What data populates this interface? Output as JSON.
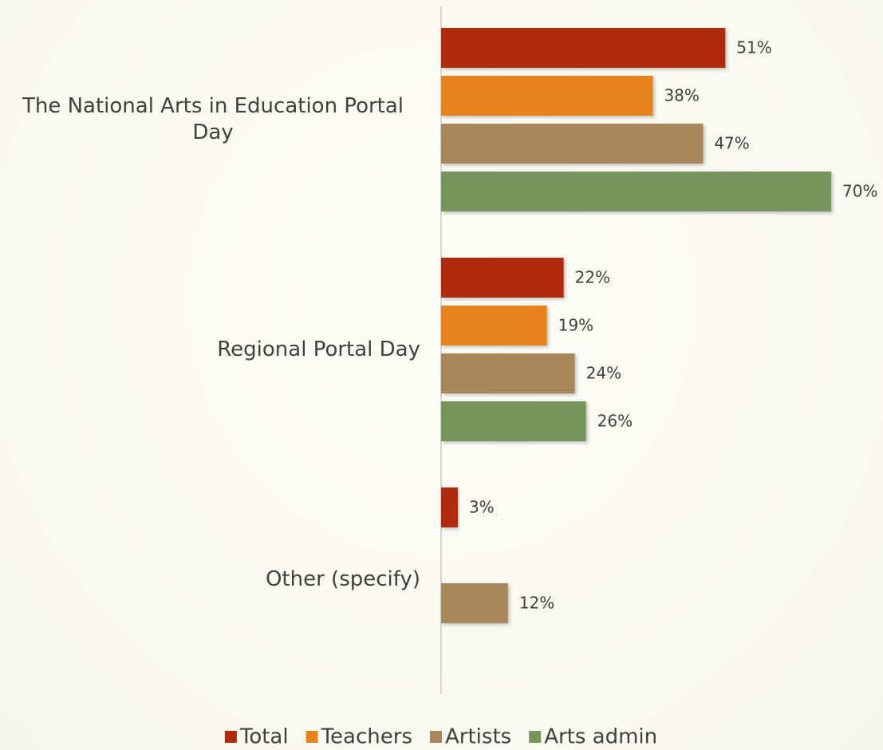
{
  "chart_data": {
    "type": "bar",
    "orientation": "horizontal",
    "categories": [
      "The National Arts in Education Portal Day",
      "Regional Portal Day",
      "Other (specify)"
    ],
    "series": [
      {
        "name": "Total",
        "color": "#b02a0a",
        "values": [
          51,
          22,
          3
        ],
        "value_labels": [
          "51%",
          "22%",
          "3%"
        ]
      },
      {
        "name": "Teachers",
        "color": "#e8821c",
        "values": [
          38,
          19,
          0
        ],
        "value_labels": [
          "38%",
          "19%",
          null
        ]
      },
      {
        "name": "Artists",
        "color": "#a8885a",
        "values": [
          47,
          24,
          12
        ],
        "value_labels": [
          "47%",
          "24%",
          "12%"
        ]
      },
      {
        "name": "Arts admin",
        "color": "#76955a",
        "values": [
          70,
          26,
          0
        ],
        "value_labels": [
          "70%",
          "26%",
          null
        ]
      }
    ],
    "legend": "bottom"
  }
}
